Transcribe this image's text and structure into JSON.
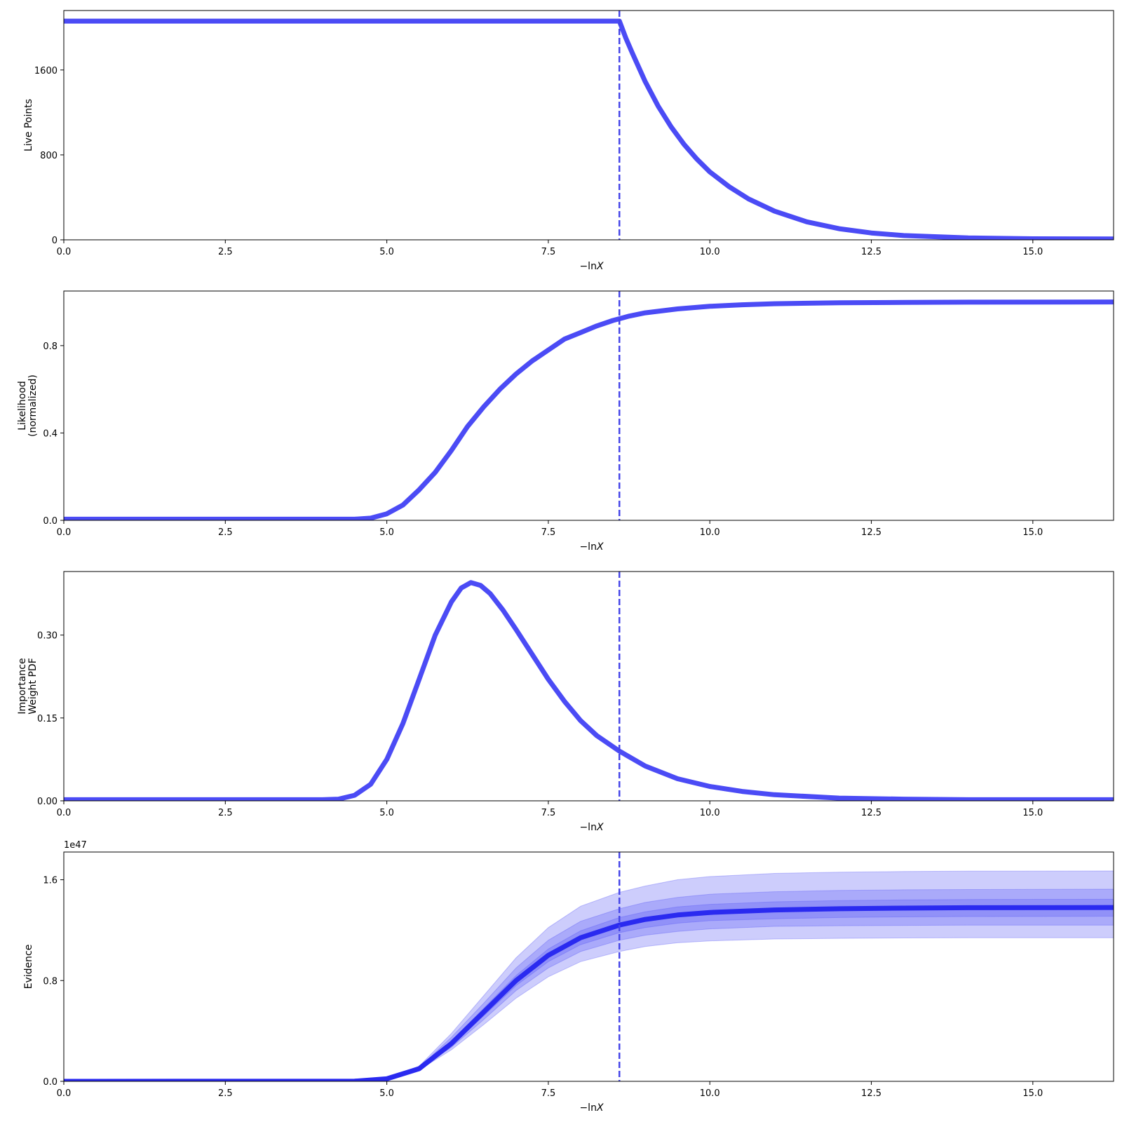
{
  "colors": {
    "line": "#4b4bf5",
    "evidence_line": "#2a2af0",
    "band": "#5a5af5",
    "vline": "#4545e8",
    "axes": "#000000"
  },
  "chart_data": [
    {
      "type": "line",
      "ylabel": [
        "Live Points"
      ],
      "xlabel": "−ln",
      "xlabel_var": "X",
      "xlim": [
        0,
        16.25
      ],
      "ylim": [
        0,
        2160
      ],
      "xticks": [
        0.0,
        2.5,
        5.0,
        7.5,
        10.0,
        12.5,
        15.0
      ],
      "xtick_labels": [
        "0.0",
        "2.5",
        "5.0",
        "7.5",
        "10.0",
        "12.5",
        "15.0"
      ],
      "yticks": [
        0,
        800,
        1600
      ],
      "ytick_labels": [
        "0",
        "800",
        "1600"
      ],
      "vline_x": 8.6,
      "series": [
        {
          "x": [
            0,
            8.6,
            8.7,
            8.8,
            9.0,
            9.2,
            9.4,
            9.6,
            9.8,
            10.0,
            10.3,
            10.6,
            11.0,
            11.5,
            12.0,
            12.5,
            13.0,
            14.0,
            15.0,
            16.25
          ],
          "values": [
            2060,
            2060,
            1900,
            1760,
            1490,
            1260,
            1065,
            900,
            760,
            640,
            500,
            385,
            270,
            170,
            105,
            65,
            40,
            18,
            10,
            8
          ]
        }
      ]
    },
    {
      "type": "line",
      "ylabel": [
        "Likelihood",
        "(normalized)"
      ],
      "xlabel": "−ln",
      "xlabel_var": "X",
      "xlim": [
        0,
        16.25
      ],
      "ylim": [
        0,
        1.05
      ],
      "xticks": [
        0.0,
        2.5,
        5.0,
        7.5,
        10.0,
        12.5,
        15.0
      ],
      "xtick_labels": [
        "0.0",
        "2.5",
        "5.0",
        "7.5",
        "10.0",
        "12.5",
        "15.0"
      ],
      "yticks": [
        0.0,
        0.4,
        0.8
      ],
      "ytick_labels": [
        "0.0",
        "0.4",
        "0.8"
      ],
      "vline_x": 8.6,
      "series": [
        {
          "x": [
            0,
            4.5,
            4.75,
            5.0,
            5.25,
            5.5,
            5.75,
            6.0,
            6.25,
            6.5,
            6.75,
            7.0,
            7.25,
            7.5,
            7.75,
            8.0,
            8.25,
            8.5,
            8.75,
            9.0,
            9.5,
            10.0,
            10.5,
            11.0,
            12.0,
            13.0,
            14.0,
            16.25
          ],
          "values": [
            0.005,
            0.005,
            0.01,
            0.03,
            0.07,
            0.14,
            0.22,
            0.32,
            0.43,
            0.52,
            0.6,
            0.67,
            0.73,
            0.78,
            0.83,
            0.86,
            0.89,
            0.915,
            0.935,
            0.95,
            0.968,
            0.98,
            0.987,
            0.992,
            0.996,
            0.998,
            0.999,
            1.0
          ]
        }
      ]
    },
    {
      "type": "line",
      "ylabel": [
        "Importance",
        "Weight PDF"
      ],
      "xlabel": "−ln",
      "xlabel_var": "X",
      "xlim": [
        0,
        16.25
      ],
      "ylim": [
        0,
        0.415
      ],
      "xticks": [
        0.0,
        2.5,
        5.0,
        7.5,
        10.0,
        12.5,
        15.0
      ],
      "xtick_labels": [
        "0.0",
        "2.5",
        "5.0",
        "7.5",
        "10.0",
        "12.5",
        "15.0"
      ],
      "yticks": [
        0.0,
        0.15,
        0.3
      ],
      "ytick_labels": [
        "0.00",
        "0.15",
        "0.30"
      ],
      "vline_x": 8.6,
      "series": [
        {
          "x": [
            0,
            4.0,
            4.25,
            4.5,
            4.75,
            5.0,
            5.25,
            5.5,
            5.75,
            6.0,
            6.15,
            6.3,
            6.45,
            6.6,
            6.8,
            7.0,
            7.25,
            7.5,
            7.75,
            8.0,
            8.25,
            8.6,
            9.0,
            9.5,
            10.0,
            10.5,
            11.0,
            12.0,
            13.0,
            14.0,
            16.25
          ],
          "values": [
            0.002,
            0.002,
            0.003,
            0.01,
            0.03,
            0.075,
            0.14,
            0.22,
            0.3,
            0.36,
            0.385,
            0.395,
            0.39,
            0.375,
            0.345,
            0.31,
            0.265,
            0.22,
            0.18,
            0.145,
            0.118,
            0.09,
            0.063,
            0.04,
            0.026,
            0.017,
            0.011,
            0.005,
            0.003,
            0.002,
            0.002
          ]
        }
      ]
    },
    {
      "type": "area",
      "ylabel": [
        "Evidence"
      ],
      "xlabel": "−ln",
      "xlabel_var": "X",
      "offset_text": "1e47",
      "xlim": [
        0,
        16.25
      ],
      "ylim": [
        0,
        1.82
      ],
      "xticks": [
        0.0,
        2.5,
        5.0,
        7.5,
        10.0,
        12.5,
        15.0
      ],
      "xtick_labels": [
        "0.0",
        "2.5",
        "5.0",
        "7.5",
        "10.0",
        "12.5",
        "15.0"
      ],
      "yticks": [
        0.0,
        0.8,
        1.6
      ],
      "ytick_labels": [
        "0.0",
        "0.8",
        "1.6"
      ],
      "vline_x": 8.6,
      "x": [
        0,
        4.5,
        5.0,
        5.5,
        6.0,
        6.5,
        7.0,
        7.5,
        8.0,
        8.6,
        9.0,
        9.5,
        10.0,
        11.0,
        12.0,
        13.0,
        14.0,
        16.25
      ],
      "series": [
        {
          "name": "",
          "values": [
            0,
            0.001,
            0.02,
            0.1,
            0.3,
            0.55,
            0.8,
            1.0,
            1.14,
            1.24,
            1.285,
            1.32,
            1.34,
            1.36,
            1.37,
            1.375,
            1.378,
            1.38
          ]
        }
      ],
      "bands": [
        {
          "level": 3,
          "lower": [
            0,
            0.001,
            0.02,
            0.09,
            0.25,
            0.45,
            0.66,
            0.83,
            0.95,
            1.03,
            1.07,
            1.1,
            1.115,
            1.13,
            1.135,
            1.138,
            1.14,
            1.14
          ],
          "upper": [
            0,
            0.001,
            0.025,
            0.12,
            0.38,
            0.68,
            0.98,
            1.22,
            1.39,
            1.5,
            1.55,
            1.6,
            1.625,
            1.65,
            1.66,
            1.665,
            1.668,
            1.67
          ]
        },
        {
          "level": 2,
          "lower": [
            0,
            0.001,
            0.02,
            0.093,
            0.27,
            0.49,
            0.72,
            0.9,
            1.03,
            1.12,
            1.16,
            1.19,
            1.21,
            1.23,
            1.235,
            1.238,
            1.24,
            1.24
          ],
          "upper": [
            0,
            0.001,
            0.023,
            0.11,
            0.35,
            0.62,
            0.9,
            1.12,
            1.27,
            1.37,
            1.42,
            1.46,
            1.485,
            1.505,
            1.515,
            1.52,
            1.522,
            1.525
          ]
        },
        {
          "level": 1,
          "lower": [
            0,
            0.001,
            0.02,
            0.097,
            0.285,
            0.52,
            0.76,
            0.95,
            1.085,
            1.18,
            1.22,
            1.255,
            1.275,
            1.29,
            1.3,
            1.305,
            1.308,
            1.31
          ],
          "upper": [
            0,
            0.001,
            0.021,
            0.104,
            0.32,
            0.58,
            0.84,
            1.05,
            1.195,
            1.3,
            1.345,
            1.385,
            1.405,
            1.425,
            1.435,
            1.44,
            1.443,
            1.445
          ]
        }
      ]
    }
  ]
}
